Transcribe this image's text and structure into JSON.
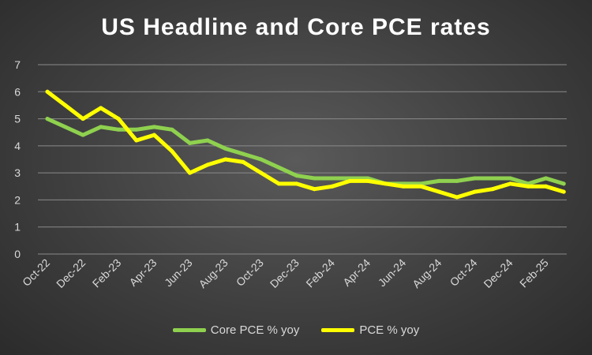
{
  "chart_data": {
    "type": "line",
    "title": "US Headline and Core PCE rates",
    "xlabel": "",
    "ylabel": "",
    "ylim": [
      0,
      7
    ],
    "yticks": [
      0,
      1,
      2,
      3,
      4,
      5,
      6,
      7
    ],
    "grid": true,
    "legend_position": "bottom",
    "categories": [
      "Oct-22",
      "Nov-22",
      "Dec-22",
      "Jan-23",
      "Feb-23",
      "Mar-23",
      "Apr-23",
      "May-23",
      "Jun-23",
      "Jul-23",
      "Aug-23",
      "Sep-23",
      "Oct-23",
      "Nov-23",
      "Dec-23",
      "Jan-24",
      "Feb-24",
      "Mar-24",
      "Apr-24",
      "May-24",
      "Jun-24",
      "Jul-24",
      "Aug-24",
      "Sep-24",
      "Oct-24",
      "Nov-24",
      "Dec-24",
      "Jan-25",
      "Feb-25",
      "Mar-25"
    ],
    "tick_labels": [
      "Oct-22",
      "Dec-22",
      "Feb-23",
      "Apr-23",
      "Jun-23",
      "Aug-23",
      "Oct-23",
      "Dec-23",
      "Feb-24",
      "Apr-24",
      "Jun-24",
      "Aug-24",
      "Oct-24",
      "Dec-24",
      "Feb-25"
    ],
    "series": [
      {
        "name": "Core PCE % yoy",
        "color": "#8fd14f",
        "values": [
          5.0,
          4.7,
          4.4,
          4.7,
          4.6,
          4.6,
          4.7,
          4.6,
          4.1,
          4.2,
          3.9,
          3.7,
          3.5,
          3.2,
          2.9,
          2.8,
          2.8,
          2.8,
          2.8,
          2.6,
          2.6,
          2.6,
          2.7,
          2.7,
          2.8,
          2.8,
          2.8,
          2.6,
          2.8,
          2.6
        ]
      },
      {
        "name": "PCE % yoy",
        "color": "#ffff00",
        "values": [
          6.0,
          5.5,
          5.0,
          5.4,
          5.0,
          4.2,
          4.4,
          3.8,
          3.0,
          3.3,
          3.5,
          3.4,
          3.0,
          2.6,
          2.6,
          2.4,
          2.5,
          2.7,
          2.7,
          2.6,
          2.5,
          2.5,
          2.3,
          2.1,
          2.3,
          2.4,
          2.6,
          2.5,
          2.5,
          2.3
        ]
      }
    ]
  }
}
